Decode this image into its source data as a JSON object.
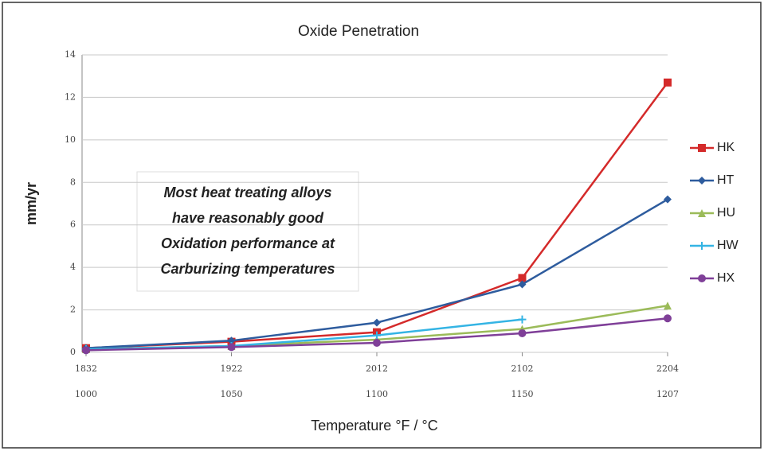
{
  "chart_data": {
    "type": "line",
    "title": "Oxide Penetration",
    "y_label": "mm/yr",
    "x_label": "Temperature °F / °C",
    "categories": [
      "1832",
      "1922",
      "2012",
      "2102",
      "2204"
    ],
    "secondary_categories": [
      "1000",
      "1050",
      "1100",
      "1150",
      "1207"
    ],
    "ylim": [
      0,
      14
    ],
    "yticks": [
      0,
      2,
      4,
      6,
      8,
      10,
      12,
      14
    ],
    "grid": true,
    "legend": "right",
    "annotation": [
      "Most heat treating alloys",
      "have reasonably good",
      "Oxidation performance at",
      "Carburizing temperatures"
    ],
    "series": [
      {
        "name": "HK",
        "color": "#d42a2a",
        "marker": "square",
        "values": [
          0.2,
          0.5,
          0.95,
          3.5,
          12.7
        ]
      },
      {
        "name": "HT",
        "color": "#2e5c9e",
        "marker": "diamond",
        "values": [
          0.2,
          0.55,
          1.4,
          3.2,
          7.2
        ]
      },
      {
        "name": "HU",
        "color": "#9bbb59",
        "marker": "triangle",
        "values": [
          0.15,
          0.3,
          0.6,
          1.1,
          2.2
        ]
      },
      {
        "name": "HW",
        "color": "#34b4e4",
        "marker": "plus",
        "values": [
          0.15,
          0.3,
          0.8,
          1.55,
          null
        ]
      },
      {
        "name": "HX",
        "color": "#7f3f98",
        "marker": "circle",
        "values": [
          0.1,
          0.25,
          0.45,
          0.9,
          1.6
        ]
      }
    ]
  }
}
